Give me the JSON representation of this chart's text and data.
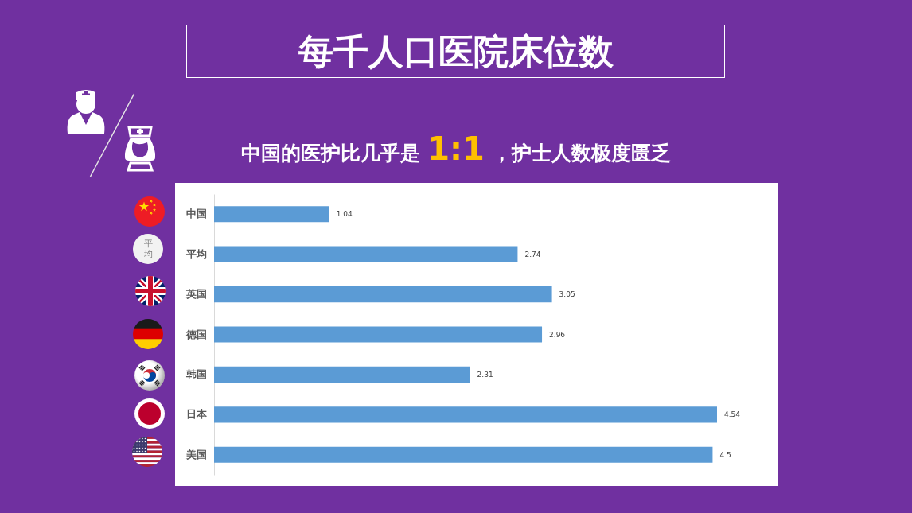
{
  "chart_data": {
    "type": "bar",
    "orientation": "horizontal",
    "title": "每千人口医院床位数",
    "subtitle": "中国的医护比几乎是 1:1 ，护士人数极度匮乏",
    "categories": [
      "中国",
      "平均",
      "英国",
      "德国",
      "韩国",
      "日本",
      "美国"
    ],
    "values": [
      1.04,
      2.74,
      3.05,
      2.96,
      2.31,
      4.54,
      4.5
    ],
    "color": "#5b9bd5",
    "data_labels": true,
    "tick_labels": "y"
  }
}
